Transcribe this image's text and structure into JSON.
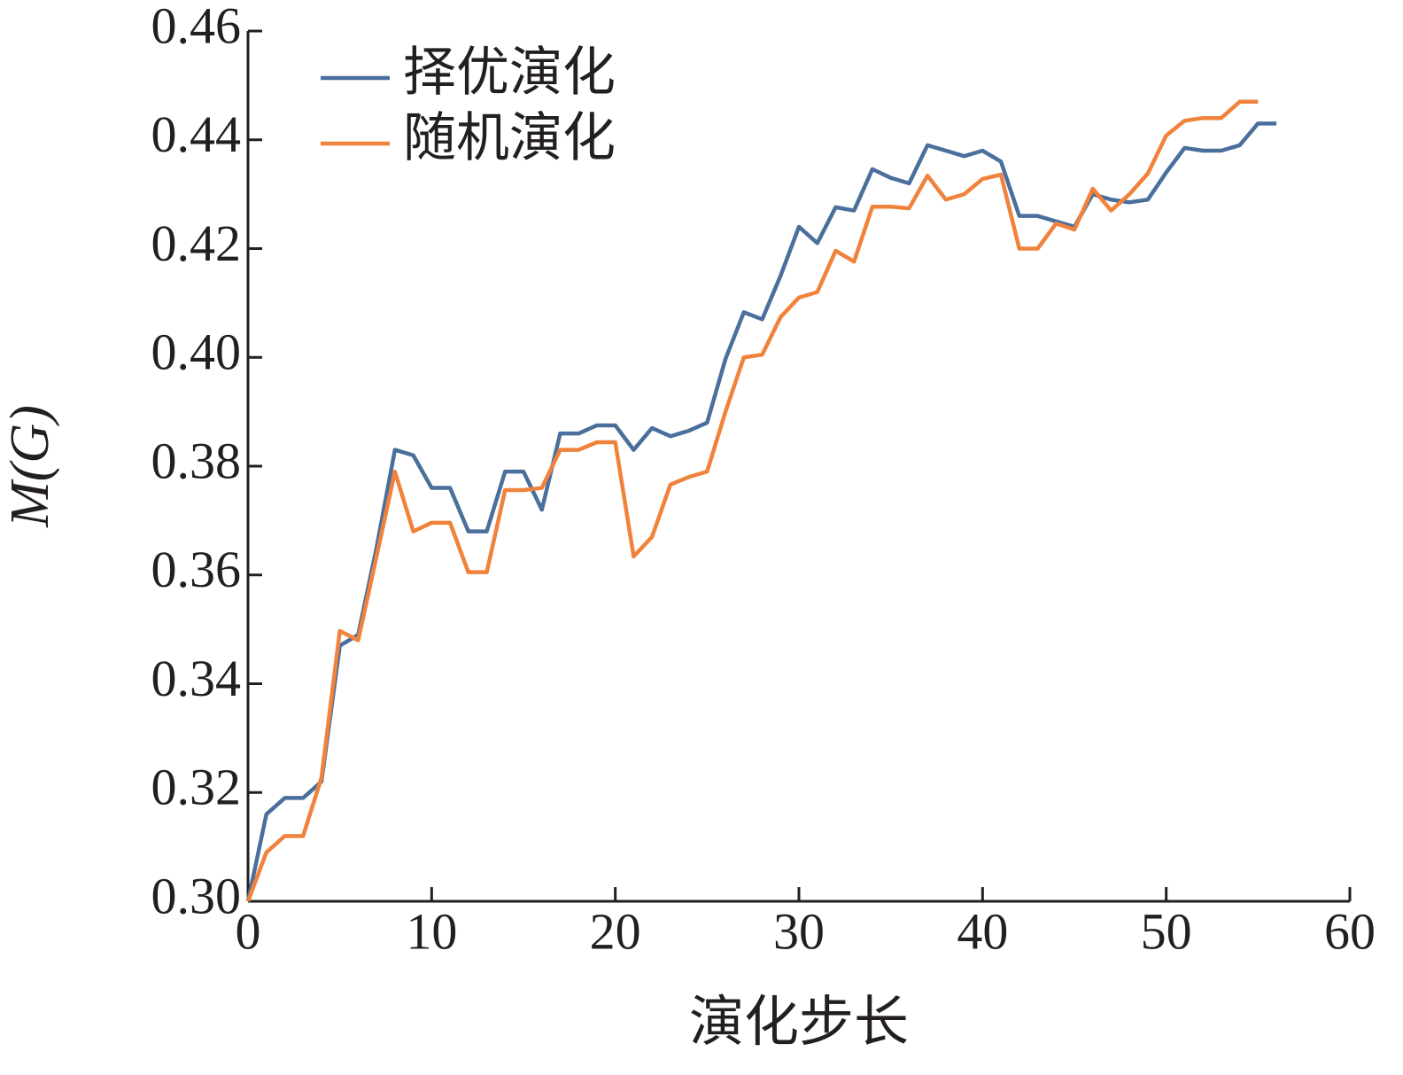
{
  "chart_data": {
    "type": "line",
    "x_label": "演化步长",
    "y_label": "M(G)",
    "x": [
      0,
      1,
      2,
      3,
      4,
      5,
      6,
      7,
      8,
      9,
      10,
      11,
      12,
      13,
      14,
      15,
      16,
      17,
      18,
      19,
      20,
      21,
      22,
      23,
      24,
      25,
      26,
      27,
      28,
      29,
      30,
      31,
      32,
      33,
      34,
      35,
      36,
      37,
      38,
      39,
      40,
      41,
      42,
      43,
      44,
      45,
      46,
      47,
      48,
      49,
      50,
      51,
      52,
      53,
      54,
      55,
      56
    ],
    "series": [
      {
        "name": "择优演化",
        "color": "#4a6f9c",
        "values": [
          0.3,
          0.316,
          0.319,
          0.319,
          0.322,
          0.347,
          0.349,
          0.365,
          0.383,
          0.382,
          0.376,
          0.376,
          0.368,
          0.368,
          0.379,
          0.379,
          0.372,
          0.386,
          0.386,
          0.3875,
          0.3875,
          0.383,
          0.387,
          0.3855,
          0.3865,
          0.388,
          0.3997,
          0.4083,
          0.407,
          0.415,
          0.424,
          0.421,
          0.4276,
          0.427,
          0.4346,
          0.433,
          0.432,
          0.439,
          0.438,
          0.437,
          0.438,
          0.436,
          0.426,
          0.426,
          0.425,
          0.424,
          0.43,
          0.429,
          0.4285,
          0.429,
          0.434,
          0.4385,
          0.438,
          0.438,
          0.439,
          0.443,
          0.443
        ]
      },
      {
        "name": "随机演化",
        "color": "#f0823c",
        "values": [
          0.3,
          0.309,
          0.312,
          0.312,
          0.3227,
          0.3497,
          0.348,
          0.3634,
          0.379,
          0.368,
          0.3696,
          0.3696,
          0.3605,
          0.3605,
          0.3756,
          0.3756,
          0.376,
          0.383,
          0.383,
          0.3844,
          0.3844,
          0.3634,
          0.367,
          0.3766,
          0.378,
          0.379,
          0.39,
          0.4,
          0.4005,
          0.4074,
          0.411,
          0.412,
          0.4196,
          0.4176,
          0.4277,
          0.4277,
          0.4274,
          0.4334,
          0.429,
          0.43,
          0.4328,
          0.4336,
          0.42,
          0.42,
          0.4246,
          0.4235,
          0.431,
          0.427,
          0.43,
          0.4338,
          0.4408,
          0.4435,
          0.444,
          0.444,
          0.447,
          0.447,
          null
        ]
      }
    ],
    "xlim": [
      0,
      60
    ],
    "xticks": [
      0,
      10,
      20,
      30,
      40,
      50,
      60
    ],
    "ylim": [
      0.3,
      0.46
    ],
    "yticks": [
      {
        "value": 0.3,
        "label": "0.30"
      },
      {
        "value": 0.32,
        "label": "0.32"
      },
      {
        "value": 0.34,
        "label": "0.34"
      },
      {
        "value": 0.36,
        "label": "0.36"
      },
      {
        "value": 0.38,
        "label": "0.38"
      },
      {
        "value": 0.4,
        "label": "0.40"
      },
      {
        "value": 0.42,
        "label": "0.42"
      },
      {
        "value": 0.44,
        "label": "0.44"
      },
      {
        "value": 0.46,
        "label": "0.46"
      }
    ],
    "grid": false,
    "legend": "upper left"
  }
}
